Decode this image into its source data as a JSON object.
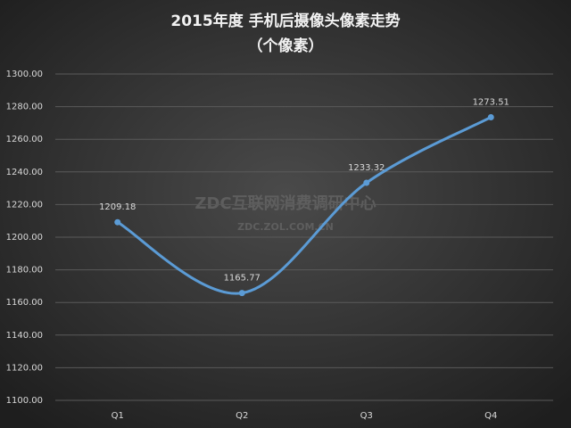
{
  "chart_data": {
    "type": "line",
    "title": "2015年度 手机后摄像头像素走势",
    "subtitle": "（个像素）",
    "annotations": [
      "ZDC互联网消费调研中心",
      "ZDC.ZOL.COM.CN"
    ],
    "categories": [
      "Q1",
      "Q2",
      "Q3",
      "Q4"
    ],
    "series": [
      {
        "color": "#5b9bd5",
        "values": [
          1209.18,
          1165.77,
          1233.32,
          1273.51
        ]
      }
    ],
    "ylim": [
      1100,
      1300
    ],
    "yticks": [
      {
        "value": 1100,
        "label": "1100.00"
      },
      {
        "value": 1120,
        "label": "1120.00"
      },
      {
        "value": 1140,
        "label": "1140.00"
      },
      {
        "value": 1160,
        "label": "1160.00"
      },
      {
        "value": 1180,
        "label": "1180.00"
      },
      {
        "value": 1200,
        "label": "1200.00"
      },
      {
        "value": 1220,
        "label": "1220.00"
      },
      {
        "value": 1240,
        "label": "1240.00"
      },
      {
        "value": 1260,
        "label": "1260.00"
      },
      {
        "value": 1280,
        "label": "1280.00"
      },
      {
        "value": 1300,
        "label": "1300.00"
      }
    ],
    "grid": true,
    "smooth": true
  }
}
